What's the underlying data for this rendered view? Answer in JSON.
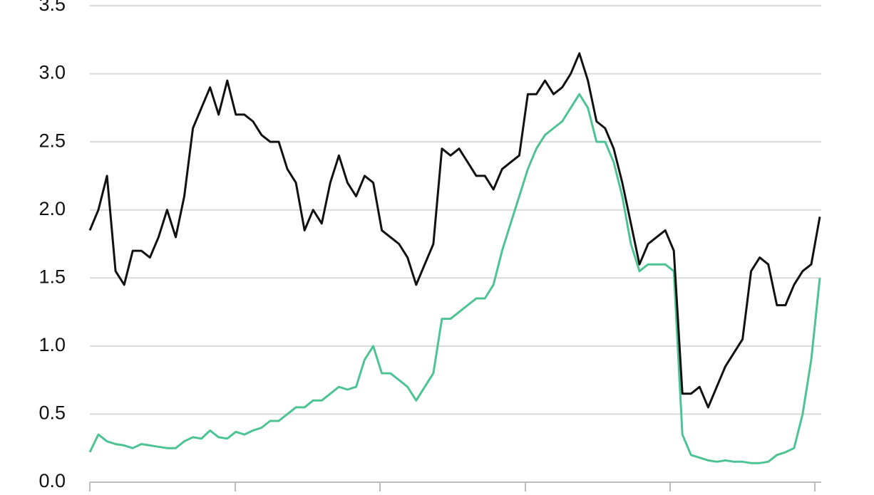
{
  "chart_data": {
    "type": "line",
    "ylim": [
      0,
      3.5
    ],
    "yticks": [
      {
        "value": 0,
        "label": "0.0"
      },
      0.5,
      {
        "value": 1,
        "label": "1.0"
      },
      1.5,
      {
        "value": 2,
        "label": "2.0"
      },
      2.5,
      {
        "value": 3,
        "label": "3.0"
      },
      3.5
    ],
    "grid": true,
    "series": [
      {
        "color": "#111111",
        "values": [
          1.85,
          2.0,
          2.25,
          1.55,
          1.45,
          1.7,
          1.7,
          1.65,
          1.8,
          2.0,
          1.8,
          2.1,
          2.6,
          2.75,
          2.9,
          2.7,
          2.95,
          2.7,
          2.7,
          2.65,
          2.55,
          2.5,
          2.5,
          2.3,
          2.2,
          1.85,
          2.0,
          1.9,
          2.2,
          2.4,
          2.2,
          2.1,
          2.25,
          2.2,
          1.85,
          1.8,
          1.75,
          1.65,
          1.45,
          1.6,
          1.75,
          2.45,
          2.4,
          2.45,
          2.35,
          2.25,
          2.25,
          2.15,
          2.3,
          2.35,
          2.4,
          2.85,
          2.85,
          2.95,
          2.85,
          2.9,
          3.0,
          3.15,
          2.95,
          2.65,
          2.6,
          2.45,
          2.2,
          1.9,
          1.6,
          1.75,
          1.8,
          1.85,
          1.7,
          0.65,
          0.65,
          0.7,
          0.55,
          0.7,
          0.85,
          0.95,
          1.05,
          1.55,
          1.65,
          1.6,
          1.3,
          1.3,
          1.45,
          1.55,
          1.6,
          1.95
        ]
      },
      {
        "color": "#4dc394",
        "values": [
          0.22,
          0.35,
          0.3,
          0.28,
          0.27,
          0.25,
          0.28,
          0.27,
          0.26,
          0.25,
          0.25,
          0.3,
          0.33,
          0.32,
          0.38,
          0.33,
          0.32,
          0.37,
          0.35,
          0.38,
          0.4,
          0.45,
          0.45,
          0.5,
          0.55,
          0.55,
          0.6,
          0.6,
          0.65,
          0.7,
          0.68,
          0.7,
          0.9,
          1.0,
          0.8,
          0.8,
          0.75,
          0.7,
          0.6,
          0.7,
          0.8,
          1.2,
          1.2,
          1.25,
          1.3,
          1.35,
          1.35,
          1.45,
          1.7,
          1.9,
          2.1,
          2.3,
          2.45,
          2.55,
          2.6,
          2.65,
          2.75,
          2.85,
          2.75,
          2.5,
          2.5,
          2.35,
          2.1,
          1.75,
          1.55,
          1.6,
          1.6,
          1.6,
          1.55,
          0.35,
          0.2,
          0.18,
          0.16,
          0.15,
          0.16,
          0.15,
          0.15,
          0.14,
          0.14,
          0.15,
          0.2,
          0.22,
          0.25,
          0.5,
          0.9,
          1.5
        ]
      }
    ]
  }
}
